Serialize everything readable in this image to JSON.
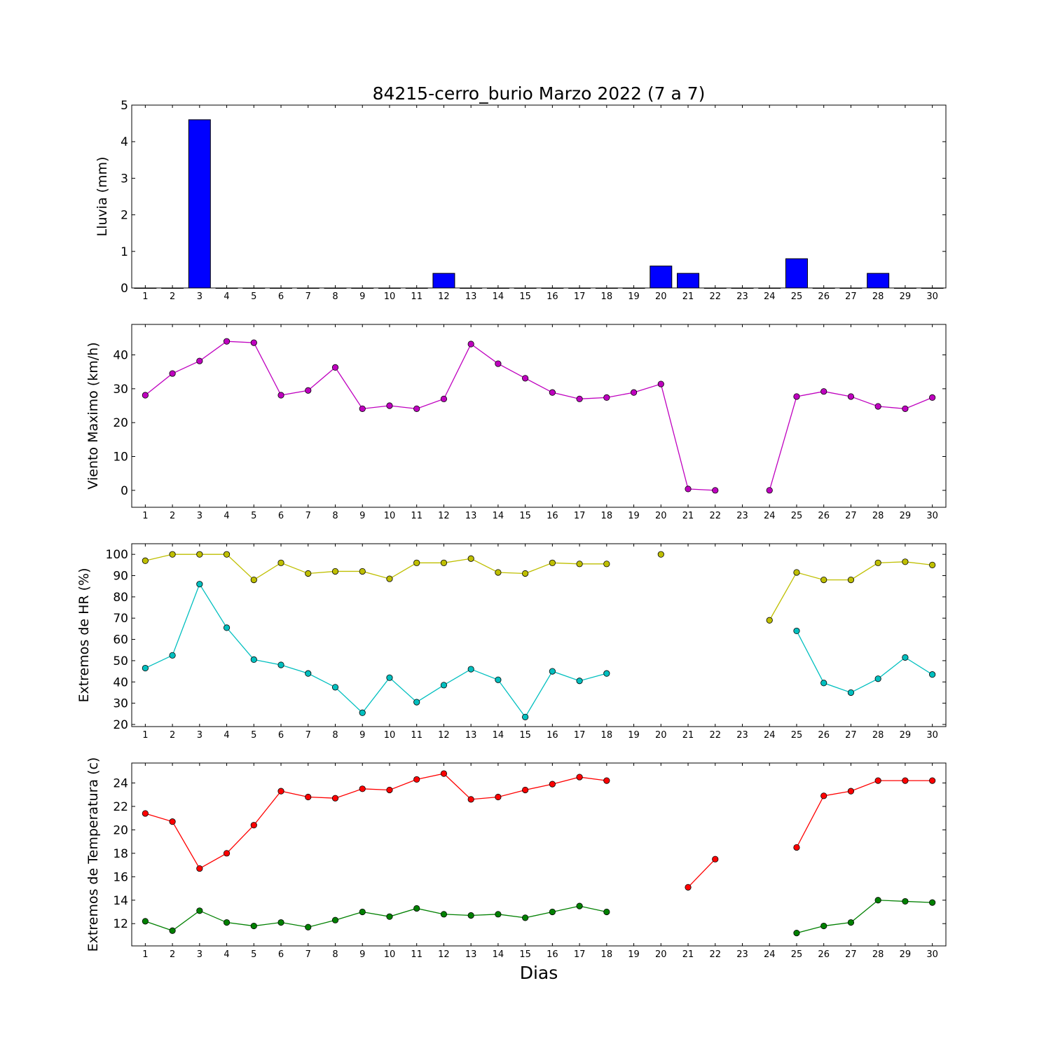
{
  "figure": {
    "title": "84215-cerro_burio Marzo 2022  (7 a 7)",
    "xlabel": "Dias"
  },
  "chart_data": [
    {
      "type": "bar",
      "ylabel": "Lluvia (mm)",
      "x": [
        1,
        2,
        3,
        4,
        5,
        6,
        7,
        8,
        9,
        10,
        11,
        12,
        13,
        14,
        15,
        16,
        17,
        18,
        19,
        20,
        21,
        22,
        23,
        24,
        25,
        26,
        27,
        28,
        29,
        30
      ],
      "values": [
        0,
        0,
        4.6,
        0,
        0,
        0,
        0,
        0,
        0,
        0,
        0,
        0.4,
        0,
        0,
        0,
        0,
        0,
        0,
        0,
        0.6,
        0.4,
        0,
        0,
        0,
        0.8,
        0,
        0,
        0.4,
        0,
        0
      ],
      "xlim": [
        0.5,
        30.5
      ],
      "ylim": [
        0,
        5
      ],
      "yticks": [
        0,
        1,
        2,
        3,
        4,
        5
      ],
      "color": "#0000ff",
      "grid": false
    },
    {
      "type": "line",
      "ylabel": "Viento Maximo (km/h)",
      "x": [
        1,
        2,
        3,
        4,
        5,
        6,
        7,
        8,
        9,
        10,
        11,
        12,
        13,
        14,
        15,
        16,
        17,
        18,
        19,
        20,
        21,
        22,
        23,
        24,
        25,
        26,
        27,
        28,
        29,
        30
      ],
      "series": [
        {
          "values": [
            28.1,
            34.5,
            38.2,
            44.0,
            43.6,
            28.1,
            29.5,
            36.3,
            24.1,
            25.0,
            24.1,
            27.0,
            43.2,
            37.4,
            33.1,
            28.9,
            27.0,
            27.4,
            28.9,
            31.4,
            0.4,
            0.0,
            null,
            0.0,
            27.7,
            29.2,
            27.7,
            24.8,
            24.1,
            27.4
          ],
          "color": "#bf00bf"
        }
      ],
      "xlim": [
        0.5,
        30.5
      ],
      "ylim": [
        -5,
        49
      ],
      "yticks": [
        0,
        10,
        20,
        30,
        40
      ],
      "grid": false
    },
    {
      "type": "line",
      "ylabel": "Extremos de HR (%)",
      "x": [
        1,
        2,
        3,
        4,
        5,
        6,
        7,
        8,
        9,
        10,
        11,
        12,
        13,
        14,
        15,
        16,
        17,
        18,
        19,
        20,
        21,
        22,
        23,
        24,
        25,
        26,
        27,
        28,
        29,
        30
      ],
      "series": [
        {
          "values": [
            97,
            100,
            100,
            100,
            88,
            96,
            91,
            92,
            92,
            88.5,
            96,
            96,
            98,
            91.5,
            91,
            96,
            95.5,
            95.5,
            null,
            100,
            null,
            null,
            null,
            69,
            91.5,
            88,
            88,
            96,
            96.5,
            95
          ],
          "color": "#bfbf00"
        },
        {
          "values": [
            46.5,
            52.5,
            86,
            65.5,
            50.5,
            48,
            44,
            37.5,
            25.5,
            42,
            30.5,
            38.5,
            46,
            41,
            23.5,
            45,
            40.5,
            44,
            null,
            null,
            null,
            null,
            null,
            null,
            64,
            39.5,
            35,
            41.5,
            51.5,
            43.5
          ],
          "color": "#00bfbf"
        }
      ],
      "xlim": [
        0.5,
        30.5
      ],
      "ylim": [
        19,
        105
      ],
      "yticks": [
        20,
        30,
        40,
        50,
        60,
        70,
        80,
        90,
        100
      ],
      "grid": false
    },
    {
      "type": "line",
      "ylabel": "Extremos de Temperatura (c)",
      "x": [
        1,
        2,
        3,
        4,
        5,
        6,
        7,
        8,
        9,
        10,
        11,
        12,
        13,
        14,
        15,
        16,
        17,
        18,
        19,
        20,
        21,
        22,
        23,
        24,
        25,
        26,
        27,
        28,
        29,
        30
      ],
      "series": [
        {
          "values": [
            21.4,
            20.7,
            16.7,
            18.0,
            20.4,
            23.3,
            22.8,
            22.7,
            23.5,
            23.4,
            24.3,
            24.8,
            22.6,
            22.8,
            23.4,
            23.9,
            24.5,
            24.2,
            null,
            null,
            15.1,
            17.5,
            null,
            null,
            18.5,
            22.9,
            23.3,
            24.2,
            24.2,
            24.2
          ],
          "color": "#ff0000"
        },
        {
          "values": [
            12.2,
            11.4,
            13.1,
            12.1,
            11.8,
            12.1,
            11.7,
            12.3,
            13.0,
            12.6,
            13.3,
            12.8,
            12.7,
            12.8,
            12.5,
            13.0,
            13.5,
            13.0,
            null,
            null,
            null,
            null,
            null,
            null,
            11.2,
            11.8,
            12.1,
            14.0,
            13.9,
            13.8
          ],
          "color": "#008000"
        }
      ],
      "xlim": [
        0.5,
        30.5
      ],
      "ylim": [
        10.1,
        25.7
      ],
      "yticks": [
        12,
        14,
        16,
        18,
        20,
        22,
        24
      ],
      "grid": false
    }
  ]
}
